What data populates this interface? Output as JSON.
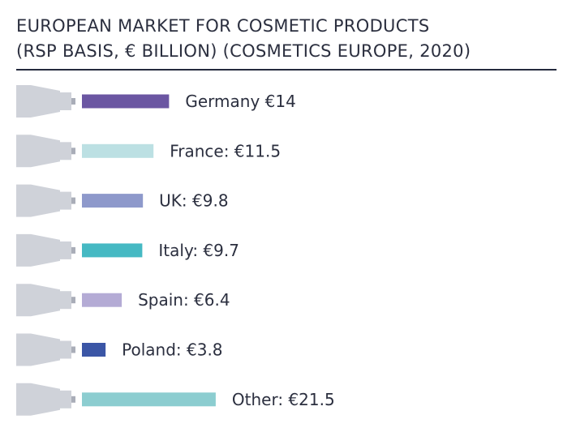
{
  "title": {
    "line1": "EUROPEAN MARKET FOR COSMETIC PRODUCTS",
    "line2": "(RSP BASIS, € BILLION) (COSMETICS EUROPE, 2020)"
  },
  "tube_icon": "cosmetic-tube-icon",
  "colors": {
    "tube_body": "#cfd2d9",
    "tube_cap": "#a9adb8",
    "rule": "#252a3e",
    "text": "#2b2f3f"
  },
  "chart_data": {
    "type": "bar",
    "orientation": "horizontal",
    "title": "EUROPEAN MARKET FOR COSMETIC PRODUCTS (RSP BASIS, € BILLION) (COSMETICS EUROPE, 2020)",
    "categories": [
      "Germany",
      "France",
      "UK",
      "Italy",
      "Spain",
      "Poland",
      "Other"
    ],
    "values": [
      14,
      11.5,
      9.8,
      9.7,
      6.4,
      3.8,
      21.5
    ],
    "labels": [
      "Germany €14",
      "France: €11.5",
      "UK: €9.8",
      "Italy: €9.7",
      "Spain: €6.4",
      "Poland: €3.8",
      "Other: €21.5"
    ],
    "colors": [
      "#6b56a2",
      "#bce0e3",
      "#8e99cb",
      "#45b9c3",
      "#b4abd5",
      "#3b56a6",
      "#8ccdd0"
    ],
    "grid": false,
    "legend": "none"
  }
}
